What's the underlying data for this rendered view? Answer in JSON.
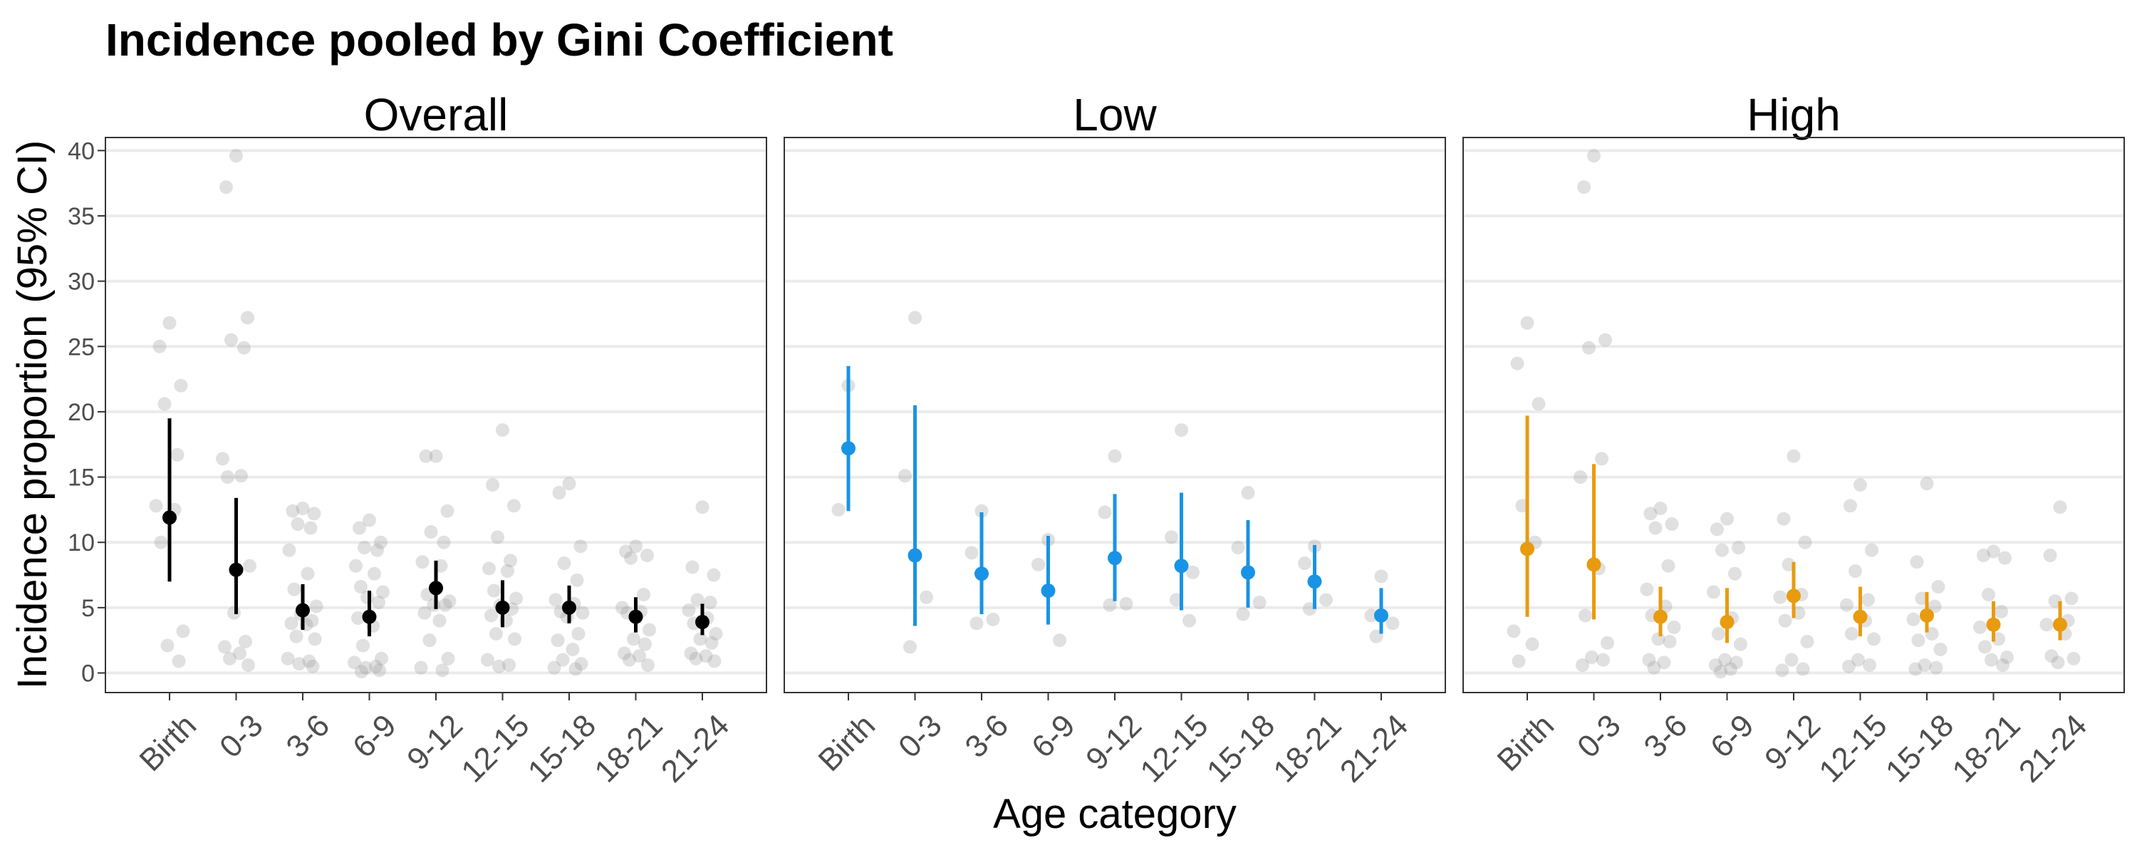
{
  "chart_data": {
    "type": "scatter",
    "title": "Incidence pooled by Gini Coefficient",
    "xlabel": "Age category",
    "ylabel": "Incidence proportion (95% CI)",
    "categories": [
      "Birth",
      "0-3",
      "3-6",
      "6-9",
      "9-12",
      "12-15",
      "15-18",
      "18-21",
      "21-24"
    ],
    "y_ticks": [
      "0",
      "5",
      "10",
      "15",
      "20",
      "25",
      "30",
      "35",
      "40"
    ],
    "ylim": [
      -1.5,
      41
    ],
    "panels": [
      {
        "label": "Overall",
        "color": "#000000",
        "pooled": [
          {
            "est": 11.9,
            "lo": 7.0,
            "hi": 19.5
          },
          {
            "est": 7.9,
            "lo": 4.5,
            "hi": 13.4
          },
          {
            "est": 4.8,
            "lo": 3.3,
            "hi": 6.8
          },
          {
            "est": 4.3,
            "lo": 2.8,
            "hi": 6.3
          },
          {
            "est": 6.5,
            "lo": 4.9,
            "hi": 8.6
          },
          {
            "est": 5.0,
            "lo": 3.5,
            "hi": 7.1
          },
          {
            "est": 5.0,
            "lo": 3.8,
            "hi": 6.7
          },
          {
            "est": 4.3,
            "lo": 3.1,
            "hi": 5.8
          },
          {
            "est": 3.9,
            "lo": 2.9,
            "hi": 5.3
          }
        ],
        "studies": [
          [
            26.8,
            25.0,
            22.0,
            20.6,
            16.7,
            12.8,
            12.5,
            10.0,
            3.2,
            2.1,
            0.9
          ],
          [
            39.6,
            37.2,
            27.2,
            25.5,
            24.9,
            16.4,
            15.1,
            15.0,
            8.2,
            4.6,
            2.4,
            2.0,
            1.5,
            1.1,
            0.6
          ],
          [
            12.6,
            12.4,
            12.2,
            11.4,
            11.1,
            9.4,
            7.6,
            6.4,
            5.1,
            4.5,
            4.0,
            3.8,
            3.7,
            2.8,
            2.6,
            1.1,
            0.9,
            0.7,
            0.5
          ],
          [
            11.7,
            11.1,
            10.0,
            9.6,
            9.4,
            8.2,
            7.6,
            6.6,
            6.2,
            5.8,
            5.4,
            4.2,
            3.6,
            2.1,
            1.1,
            0.8,
            0.5,
            0.4,
            0.2,
            0.1
          ],
          [
            16.6,
            16.6,
            12.4,
            10.8,
            10.0,
            8.5,
            8.2,
            6.0,
            5.5,
            5.2,
            5.2,
            4.6,
            4.0,
            2.5,
            1.1,
            0.4,
            0.2
          ],
          [
            18.6,
            14.4,
            12.8,
            10.4,
            8.6,
            8.0,
            7.8,
            6.3,
            5.7,
            5.2,
            4.9,
            4.4,
            4.0,
            3.0,
            2.6,
            1.0,
            0.6,
            0.5
          ],
          [
            14.5,
            13.8,
            9.7,
            8.4,
            7.1,
            5.6,
            5.3,
            4.7,
            4.6,
            4.3,
            3.0,
            2.5,
            1.8,
            1.0,
            0.7,
            0.4,
            0.3
          ],
          [
            9.7,
            9.3,
            9.0,
            8.8,
            6.0,
            5.0,
            4.7,
            4.6,
            3.3,
            2.6,
            2.2,
            1.5,
            1.3,
            1.0,
            0.6
          ],
          [
            12.7,
            8.1,
            7.5,
            5.6,
            5.4,
            4.8,
            4.2,
            3.8,
            3.0,
            2.6,
            2.3,
            1.5,
            1.3,
            1.1,
            0.9
          ]
        ]
      },
      {
        "label": "Low",
        "color": "#1993e5",
        "pooled": [
          {
            "est": 17.2,
            "lo": 12.4,
            "hi": 23.5
          },
          {
            "est": 9.0,
            "lo": 3.6,
            "hi": 20.5
          },
          {
            "est": 7.6,
            "lo": 4.5,
            "hi": 12.3
          },
          {
            "est": 6.3,
            "lo": 3.7,
            "hi": 10.5
          },
          {
            "est": 8.8,
            "lo": 5.5,
            "hi": 13.7
          },
          {
            "est": 8.2,
            "lo": 4.8,
            "hi": 13.8
          },
          {
            "est": 7.7,
            "lo": 5.0,
            "hi": 11.7
          },
          {
            "est": 7.0,
            "lo": 4.9,
            "hi": 9.8
          },
          {
            "est": 4.4,
            "lo": 3.0,
            "hi": 6.5
          }
        ],
        "studies": [
          [
            22.0,
            12.5
          ],
          [
            27.2,
            15.1,
            5.8,
            2.0
          ],
          [
            12.4,
            9.2,
            4.1,
            3.8
          ],
          [
            10.2,
            8.3,
            2.5
          ],
          [
            16.6,
            12.3,
            5.3,
            5.2
          ],
          [
            18.6,
            10.4,
            7.7,
            5.6,
            4.0
          ],
          [
            13.8,
            9.6,
            5.4,
            4.5
          ],
          [
            9.7,
            8.4,
            5.6,
            4.9
          ],
          [
            7.4,
            4.4,
            3.8,
            2.8
          ]
        ]
      },
      {
        "label": "High",
        "color": "#e89b0f",
        "pooled": [
          {
            "est": 9.5,
            "lo": 4.3,
            "hi": 19.7
          },
          {
            "est": 8.3,
            "lo": 4.1,
            "hi": 16.0
          },
          {
            "est": 4.3,
            "lo": 2.8,
            "hi": 6.6
          },
          {
            "est": 3.9,
            "lo": 2.3,
            "hi": 6.5
          },
          {
            "est": 5.9,
            "lo": 4.2,
            "hi": 8.5
          },
          {
            "est": 4.3,
            "lo": 2.8,
            "hi": 6.6
          },
          {
            "est": 4.4,
            "lo": 3.1,
            "hi": 6.2
          },
          {
            "est": 3.7,
            "lo": 2.4,
            "hi": 5.5
          },
          {
            "est": 3.7,
            "lo": 2.5,
            "hi": 5.5
          }
        ],
        "studies": [
          [
            26.8,
            23.7,
            20.6,
            12.8,
            10.0,
            3.2,
            2.2,
            0.9
          ],
          [
            39.6,
            37.2,
            25.5,
            24.9,
            16.4,
            15.0,
            8.0,
            4.4,
            2.3,
            1.2,
            1.0,
            0.6
          ],
          [
            12.6,
            12.2,
            11.4,
            11.1,
            8.2,
            6.4,
            5.1,
            4.4,
            3.5,
            2.6,
            2.4,
            1.0,
            0.8,
            0.4
          ],
          [
            11.8,
            11.0,
            9.6,
            9.4,
            7.6,
            6.2,
            4.2,
            3.0,
            2.2,
            1.0,
            0.8,
            0.6,
            0.3,
            0.1
          ],
          [
            16.6,
            11.8,
            10.0,
            8.3,
            6.0,
            5.8,
            4.6,
            4.0,
            2.4,
            1.0,
            0.3,
            0.2
          ],
          [
            14.4,
            12.8,
            9.4,
            7.8,
            5.6,
            5.2,
            4.0,
            3.0,
            2.6,
            1.0,
            0.6,
            0.5
          ],
          [
            14.5,
            8.5,
            6.6,
            5.7,
            5.1,
            4.1,
            3.0,
            2.5,
            1.8,
            0.6,
            0.4,
            0.3
          ],
          [
            9.3,
            9.0,
            8.8,
            6.0,
            4.7,
            3.5,
            2.6,
            2.0,
            1.2,
            1.0,
            0.6
          ],
          [
            12.7,
            9.0,
            5.7,
            5.5,
            4.0,
            3.7,
            3.0,
            1.3,
            1.1,
            0.8
          ]
        ]
      }
    ]
  }
}
